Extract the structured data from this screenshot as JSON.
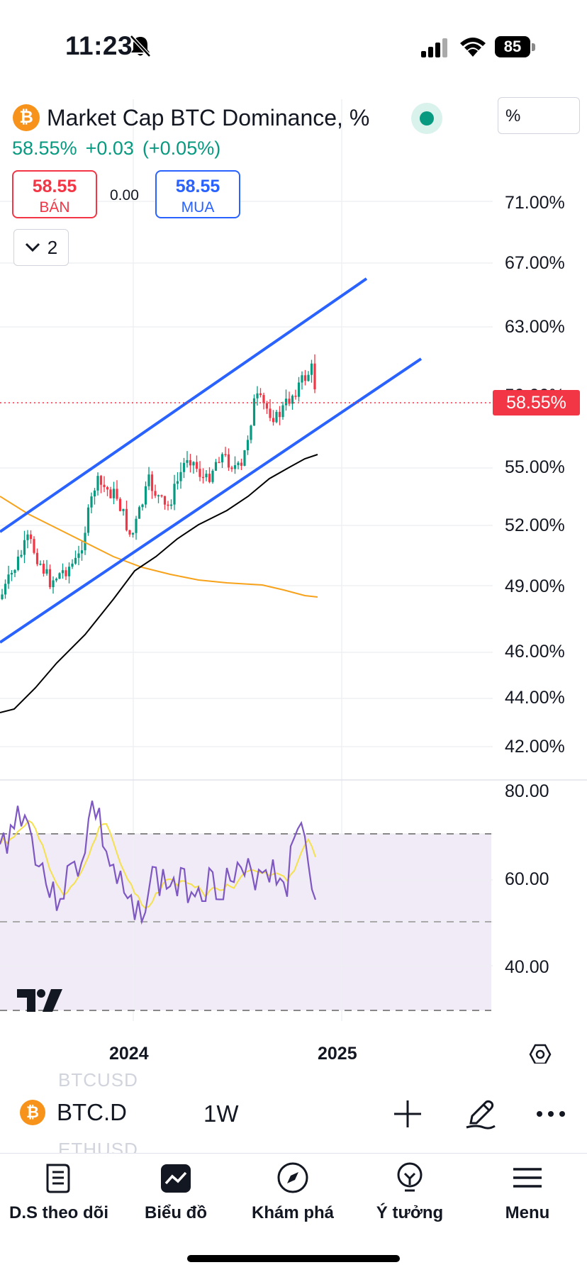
{
  "status_bar": {
    "time": "11:23",
    "battery": "85"
  },
  "header": {
    "title": "Market Cap BTC Dominance, %",
    "logo_letter": "₿",
    "unit": "%",
    "price": "58.55%",
    "change": "+0.03",
    "change_pct": "(+0.05%)"
  },
  "trade": {
    "sell_price": "58.55",
    "sell_label": "BÁN",
    "spread": "0.00",
    "buy_price": "58.55",
    "buy_label": "MUA",
    "indicators_count": "2"
  },
  "price_axis": [
    "71.00%",
    "67.00%",
    "63.00%",
    "59.00%",
    "55.00%",
    "52.00%",
    "49.00%",
    "46.00%",
    "44.00%",
    "42.00%"
  ],
  "current_price_tag": "58.55%",
  "rsi_axis": [
    "80.00",
    "60.00",
    "40.00"
  ],
  "time_axis": [
    "2024",
    "2025"
  ],
  "toolbar": {
    "symbol": "BTC.D",
    "interval": "1W",
    "faded_above": "BTCUSD",
    "faded_below": "ETHUSD"
  },
  "nav": [
    {
      "label": "D.S theo dõi",
      "icon": "watchlist-icon"
    },
    {
      "label": "Biểu đồ",
      "icon": "chart-icon"
    },
    {
      "label": "Khám phá",
      "icon": "compass-icon"
    },
    {
      "label": "Ý tưởng",
      "icon": "lightbulb-icon"
    },
    {
      "label": "Menu",
      "icon": "menu-icon"
    }
  ],
  "colors": {
    "up": "#089981",
    "down": "#f23645",
    "channel": "#2962ff",
    "ma_orange": "#f7a21b",
    "ma_black": "#000000",
    "rsi": "#7e57c2",
    "rsi_ma": "#f5e14c"
  }
}
